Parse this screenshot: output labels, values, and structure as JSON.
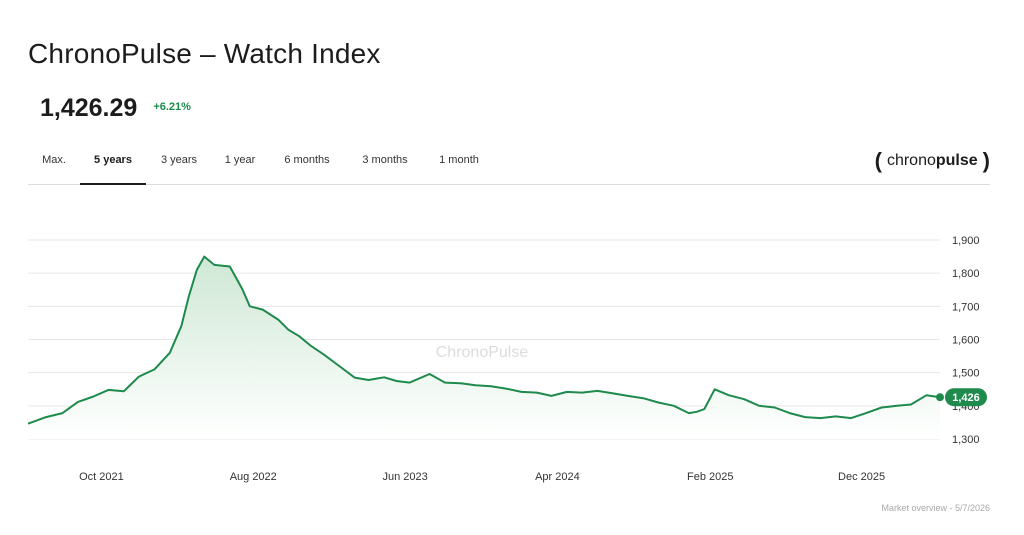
{
  "header": {
    "title": "ChronoPulse – Watch Index",
    "price": "1,426.29",
    "change": "+6.21%"
  },
  "tabs": [
    {
      "label": "Max.",
      "active": false
    },
    {
      "label": "5 years",
      "active": true
    },
    {
      "label": "3 years",
      "active": false
    },
    {
      "label": "1 year",
      "active": false
    },
    {
      "label": "6 months",
      "active": false
    },
    {
      "label": "3 months",
      "active": false
    },
    {
      "label": "1 month",
      "active": false
    }
  ],
  "logo": {
    "left_bracket": "(",
    "word_light": "chrono",
    "word_bold": "pulse",
    "right_bracket": ")"
  },
  "colors": {
    "line": "#1e8a4c",
    "fill_top": "#cfe8d5",
    "positive": "#1e8a4c",
    "grid": "#e6e6e6"
  },
  "footer": "Market overview - 5/7/2026",
  "chart_data": {
    "type": "area",
    "watermark": "ChronoPulse",
    "ylim": [
      1300,
      1900
    ],
    "yticks": [
      1900,
      1800,
      1700,
      1600,
      1500,
      1400,
      1300
    ],
    "ytick_labels": [
      "1,900",
      "1,800",
      "1,700",
      "1,600",
      "1,500",
      "1,400",
      "1,300"
    ],
    "xlim": [
      "2021-05-07",
      "2026-05-07"
    ],
    "xticks": [
      "2021-10-01",
      "2022-08-01",
      "2023-06-01",
      "2024-04-01",
      "2025-02-01",
      "2025-12-01"
    ],
    "xtick_labels": [
      "Oct 2021",
      "Aug 2022",
      "Jun 2023",
      "Apr 2024",
      "Feb 2025",
      "Dec 2025"
    ],
    "last_value": "1,426",
    "grid": "horizontal",
    "x": [
      "2021-05-07",
      "2021-06-10",
      "2021-07-15",
      "2021-08-15",
      "2021-09-15",
      "2021-10-15",
      "2021-11-15",
      "2021-12-15",
      "2022-01-15",
      "2022-02-15",
      "2022-03-10",
      "2022-03-25",
      "2022-04-10",
      "2022-04-25",
      "2022-05-15",
      "2022-06-15",
      "2022-07-10",
      "2022-07-25",
      "2022-08-20",
      "2022-09-20",
      "2022-10-10",
      "2022-11-01",
      "2022-11-25",
      "2022-12-20",
      "2023-01-20",
      "2023-02-20",
      "2023-03-20",
      "2023-04-20",
      "2023-05-15",
      "2023-06-10",
      "2023-07-20",
      "2023-08-20",
      "2023-09-20",
      "2023-10-20",
      "2023-11-20",
      "2023-12-20",
      "2024-01-20",
      "2024-02-20",
      "2024-03-20",
      "2024-04-20",
      "2024-05-20",
      "2024-06-20",
      "2024-07-20",
      "2024-08-20",
      "2024-09-20",
      "2024-10-20",
      "2024-11-20",
      "2024-12-20",
      "2025-01-05",
      "2025-01-20",
      "2025-02-10",
      "2025-03-10",
      "2025-04-10",
      "2025-05-10",
      "2025-06-10",
      "2025-07-10",
      "2025-08-10",
      "2025-09-10",
      "2025-10-10",
      "2025-11-10",
      "2025-12-10",
      "2026-01-10",
      "2026-02-10",
      "2026-03-10",
      "2026-04-10",
      "2026-05-07"
    ],
    "values": [
      1346,
      1365,
      1378,
      1412,
      1428,
      1448,
      1444,
      1488,
      1510,
      1560,
      1640,
      1730,
      1810,
      1850,
      1825,
      1820,
      1752,
      1700,
      1690,
      1660,
      1630,
      1610,
      1580,
      1555,
      1520,
      1485,
      1478,
      1486,
      1475,
      1470,
      1496,
      1470,
      1468,
      1462,
      1459,
      1452,
      1442,
      1440,
      1430,
      1442,
      1440,
      1445,
      1438,
      1430,
      1423,
      1410,
      1400,
      1378,
      1382,
      1390,
      1450,
      1432,
      1420,
      1400,
      1395,
      1378,
      1366,
      1363,
      1368,
      1363,
      1378,
      1395,
      1400,
      1404,
      1432,
      1426
    ]
  }
}
